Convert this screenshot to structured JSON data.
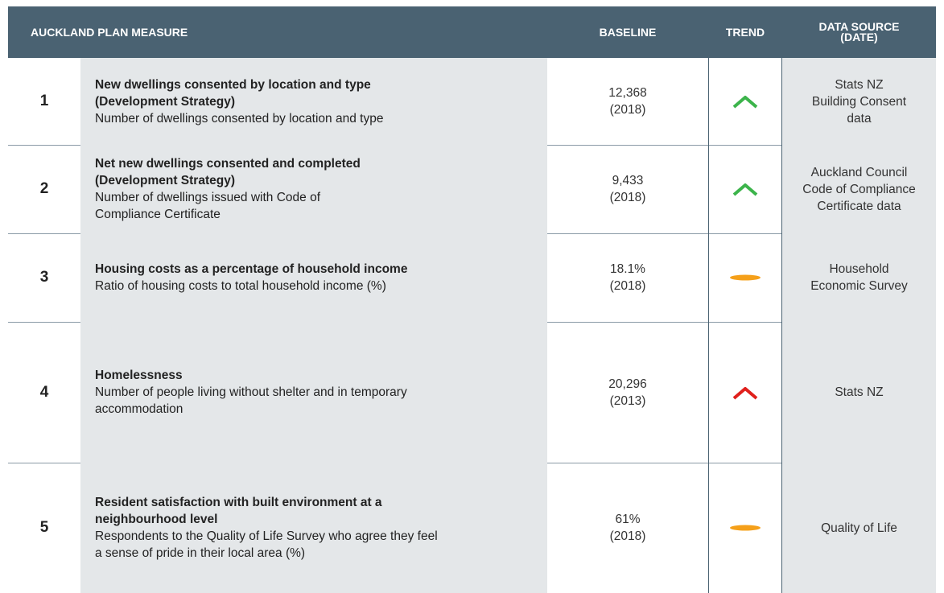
{
  "header": {
    "measure": "AUCKLAND PLAN MEASURE",
    "baseline": "BASELINE",
    "trend": "TREND",
    "source": [
      "DATA SOURCE",
      "(DATE)"
    ]
  },
  "rows": [
    {
      "number": "1",
      "title": [
        "New dwellings consented by location and type",
        "(Development Strategy)"
      ],
      "description": [
        "Number of dwellings consented by location and type"
      ],
      "baseline": [
        "12,368",
        "(2018)"
      ],
      "source": [
        "Stats NZ",
        "Building Consent",
        "data"
      ]
    },
    {
      "number": "2",
      "title": [
        "Net new dwellings consented and completed",
        "(Development Strategy)"
      ],
      "description": [
        "Number of dwellings issued with Code of",
        "Compliance Certificate"
      ],
      "baseline": [
        "9,433",
        "(2018)"
      ],
      "source": [
        "Auckland Council",
        "Code of Compliance",
        "Certificate data"
      ]
    },
    {
      "number": "3",
      "title": [
        "Housing costs as a percentage of household income"
      ],
      "description": [
        "Ratio of housing costs to total household income (%)"
      ],
      "baseline": [
        "18.1%",
        "(2018)"
      ],
      "source": [
        "Household",
        "Economic Survey"
      ]
    },
    {
      "number": "4",
      "title": [
        "Homelessness"
      ],
      "description": [
        "Number of people living without shelter and in temporary",
        "accommodation"
      ],
      "baseline": [
        "20,296",
        "(2013)"
      ],
      "source": [
        "Stats NZ"
      ]
    },
    {
      "number": "5",
      "title": [
        "Resident satisfaction with built environment at a",
        "neighbourhood level"
      ],
      "description": [
        "Respondents to the Quality of Life Survey who agree they feel",
        "a sense of pride in their local area (%)"
      ],
      "baseline": [
        "61%",
        "(2018)"
      ],
      "source": [
        "Quality of Life"
      ]
    }
  ]
}
